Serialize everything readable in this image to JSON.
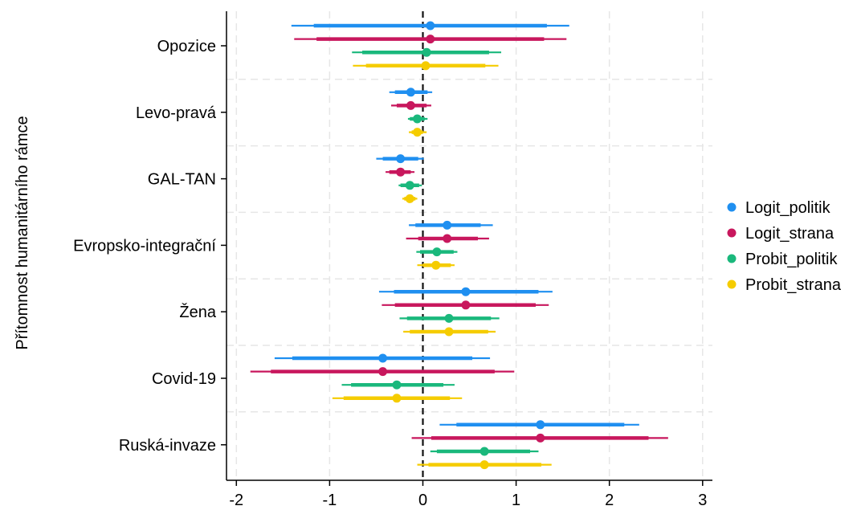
{
  "chart_data": {
    "type": "coefficient-plot",
    "title": "",
    "xlabel": "",
    "ylabel": "Přítomnost humanitárního rámce",
    "xlim": [
      -2,
      3
    ],
    "xticks": [
      -2,
      -1,
      0,
      1,
      2,
      3
    ],
    "xtick_labels": [
      "-2",
      "-1",
      "0",
      "1",
      "2",
      "3"
    ],
    "reference_line": 0,
    "grid": true,
    "legend_position": "right",
    "categories": [
      "Opozice",
      "Levo-pravá",
      "GAL-TAN",
      "Evropsko-integrační",
      "Žena",
      "Covid-19",
      "Ruská-invaze"
    ],
    "series": [
      {
        "name": "Logit_politik",
        "color": "#1f8ff0",
        "estimates": [
          0.08,
          -0.13,
          -0.24,
          0.26,
          0.46,
          -0.43,
          1.26
        ],
        "ci_inner": [
          [
            -1.17,
            1.33
          ],
          [
            -0.3,
            0.05
          ],
          [
            -0.43,
            -0.05
          ],
          [
            -0.08,
            0.62
          ],
          [
            -0.31,
            1.24
          ],
          [
            -1.4,
            0.53
          ],
          [
            0.36,
            2.16
          ]
        ],
        "ci_outer": [
          [
            -1.41,
            1.57
          ],
          [
            -0.36,
            0.1
          ],
          [
            -0.5,
            0.01
          ],
          [
            -0.15,
            0.75
          ],
          [
            -0.47,
            1.39
          ],
          [
            -1.59,
            0.72
          ],
          [
            0.18,
            2.32
          ]
        ]
      },
      {
        "name": "Logit_strana",
        "color": "#c8175d",
        "estimates": [
          0.08,
          -0.13,
          -0.24,
          0.26,
          0.46,
          -0.43,
          1.26
        ],
        "ci_inner": [
          [
            -1.14,
            1.3
          ],
          [
            -0.28,
            0.04
          ],
          [
            -0.36,
            -0.13
          ],
          [
            -0.05,
            0.59
          ],
          [
            -0.3,
            1.21
          ],
          [
            -1.63,
            0.77
          ],
          [
            0.09,
            2.42
          ]
        ],
        "ci_outer": [
          [
            -1.38,
            1.54
          ],
          [
            -0.34,
            0.09
          ],
          [
            -0.4,
            -0.09
          ],
          [
            -0.18,
            0.71
          ],
          [
            -0.44,
            1.35
          ],
          [
            -1.85,
            0.98
          ],
          [
            -0.12,
            2.63
          ]
        ]
      },
      {
        "name": "Probit_politik",
        "color": "#1ab87c",
        "estimates": [
          0.04,
          -0.06,
          -0.14,
          0.15,
          0.28,
          -0.28,
          0.66
        ],
        "ci_inner": [
          [
            -0.65,
            0.71
          ],
          [
            -0.14,
            0.02
          ],
          [
            -0.24,
            -0.04
          ],
          [
            -0.03,
            0.33
          ],
          [
            -0.17,
            0.73
          ],
          [
            -0.77,
            0.22
          ],
          [
            0.15,
            1.15
          ]
        ],
        "ci_outer": [
          [
            -0.76,
            0.84
          ],
          [
            -0.16,
            0.05
          ],
          [
            -0.26,
            -0.01
          ],
          [
            -0.07,
            0.37
          ],
          [
            -0.25,
            0.82
          ],
          [
            -0.87,
            0.34
          ],
          [
            0.08,
            1.24
          ]
        ]
      },
      {
        "name": "Probit_strana",
        "color": "#f5cc00",
        "estimates": [
          0.03,
          -0.06,
          -0.14,
          0.14,
          0.28,
          -0.28,
          0.66
        ],
        "ci_inner": [
          [
            -0.61,
            0.67
          ],
          [
            -0.12,
            0.0
          ],
          [
            -0.2,
            -0.08
          ],
          [
            0.0,
            0.3
          ],
          [
            -0.14,
            0.7
          ],
          [
            -0.85,
            0.29
          ],
          [
            0.06,
            1.27
          ]
        ],
        "ci_outer": [
          [
            -0.75,
            0.81
          ],
          [
            -0.15,
            0.04
          ],
          [
            -0.22,
            -0.06
          ],
          [
            -0.06,
            0.34
          ],
          [
            -0.21,
            0.78
          ],
          [
            -0.97,
            0.42
          ],
          [
            -0.06,
            1.38
          ]
        ]
      }
    ]
  }
}
